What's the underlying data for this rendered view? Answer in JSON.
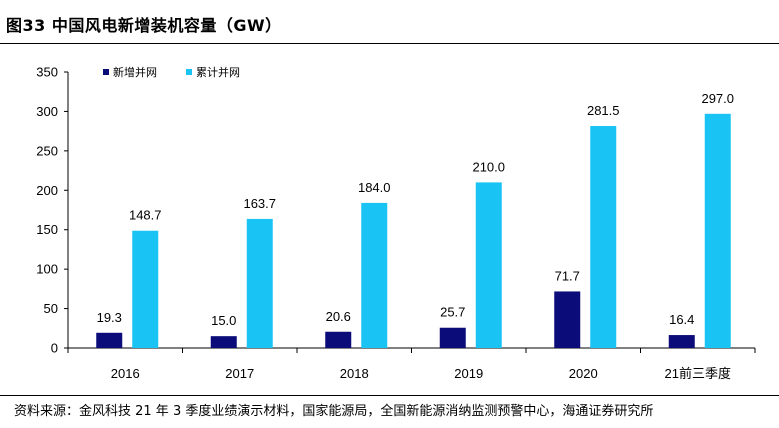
{
  "figure_title": "图33 中国风电新增装机容量（GW）",
  "source_note": "资料来源：金风科技 21 年 3 季度业绩演示材料，国家能源局，全国新能源消纳监测预警中心，海通证券研究所",
  "colors": {
    "new": "#0b0b7a",
    "cumulative": "#19c4f4"
  },
  "chart_data": {
    "type": "bar",
    "title": "",
    "xlabel": "",
    "ylabel": "",
    "ylim": [
      0,
      350
    ],
    "yticks": [
      0,
      50,
      100,
      150,
      200,
      250,
      300,
      350
    ],
    "grid": false,
    "legend_position": "top-left",
    "categories": [
      "2016",
      "2017",
      "2018",
      "2019",
      "2020",
      "21前三季度"
    ],
    "series": [
      {
        "name": "新增并网",
        "values": [
          19.3,
          15.0,
          20.6,
          25.7,
          71.7,
          16.4
        ],
        "labels": [
          "19.3",
          "15.0",
          "20.6",
          "25.7",
          "71.7",
          "16.4"
        ]
      },
      {
        "name": "累计并网",
        "values": [
          148.7,
          163.7,
          184.0,
          210.0,
          281.5,
          297.0
        ],
        "labels": [
          "148.7",
          "163.7",
          "184.0",
          "210.0",
          "281.5",
          "297.0"
        ]
      }
    ]
  }
}
